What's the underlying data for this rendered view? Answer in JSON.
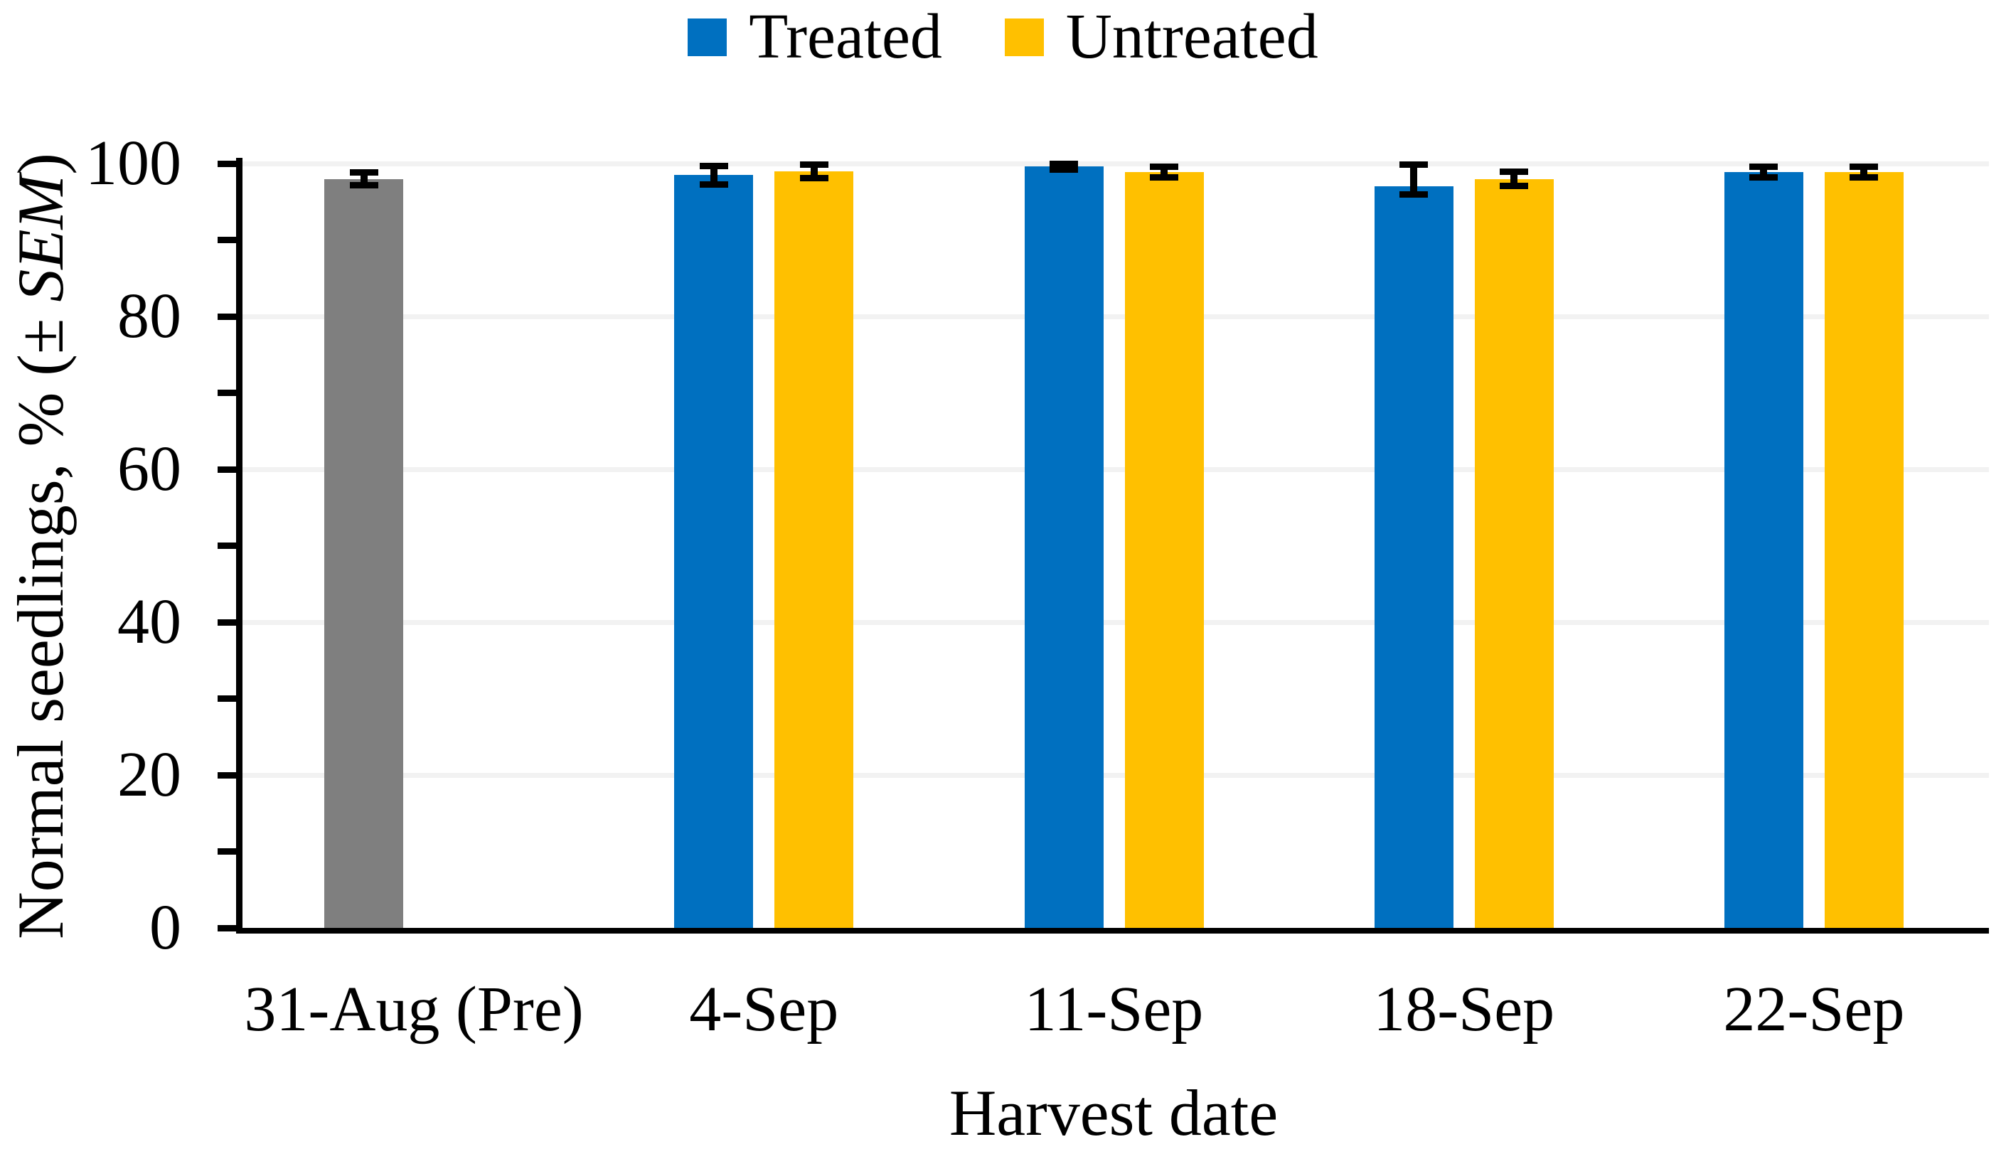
{
  "figure": {
    "background_color": "#FFFFFF",
    "text_color": "#000000",
    "gridline_color": "#F2F2F2"
  },
  "legend": {
    "position": "top-center",
    "items": [
      {
        "label": "Treated",
        "color": "#0070C0"
      },
      {
        "label": "Untreated",
        "color": "#FFC000"
      }
    ]
  },
  "y_axis": {
    "title_prefix": "Normal seedlings, % (± ",
    "title_italic": "SEM",
    "title_suffix": ")",
    "min": 0,
    "max": 100,
    "major_tick_step": 20,
    "minor_tick_step": 10,
    "tick_labels": [
      "0",
      "20",
      "40",
      "60",
      "80",
      "100"
    ]
  },
  "x_axis": {
    "title": "Harvest date"
  },
  "chart_data": {
    "type": "bar",
    "title": "",
    "xlabel": "Harvest date",
    "ylabel": "Normal seedlings, % (± SEM)",
    "ylim": [
      0,
      100
    ],
    "grid": "horizontal-major-only",
    "legend_position": "top-center",
    "error_bars": "SEM",
    "categories": [
      "31-Aug (Pre)",
      "4-Sep",
      "11-Sep",
      "18-Sep",
      "22-Sep"
    ],
    "series": [
      {
        "name": "Pre (31-Aug)",
        "in_legend": false,
        "slot": "left",
        "color": "#7F7F7F",
        "values": [
          98.0,
          null,
          null,
          null,
          null
        ],
        "sem_plus": [
          0.8,
          null,
          null,
          null,
          null
        ],
        "sem_minus": [
          0.8,
          null,
          null,
          null,
          null
        ]
      },
      {
        "name": "Treated",
        "in_legend": true,
        "slot": "left",
        "color": "#0070C0",
        "values": [
          null,
          98.5,
          99.6,
          97.0,
          98.9
        ],
        "sem_plus": [
          null,
          1.2,
          0.4,
          2.9,
          0.7
        ],
        "sem_minus": [
          null,
          1.2,
          0.4,
          1.0,
          0.7
        ]
      },
      {
        "name": "Untreated",
        "in_legend": true,
        "slot": "right",
        "color": "#FFC000",
        "values": [
          null,
          99.0,
          98.9,
          98.0,
          98.9
        ],
        "sem_plus": [
          null,
          0.9,
          0.7,
          0.9,
          0.7
        ],
        "sem_minus": [
          null,
          0.9,
          0.7,
          0.9,
          0.7
        ]
      }
    ]
  }
}
